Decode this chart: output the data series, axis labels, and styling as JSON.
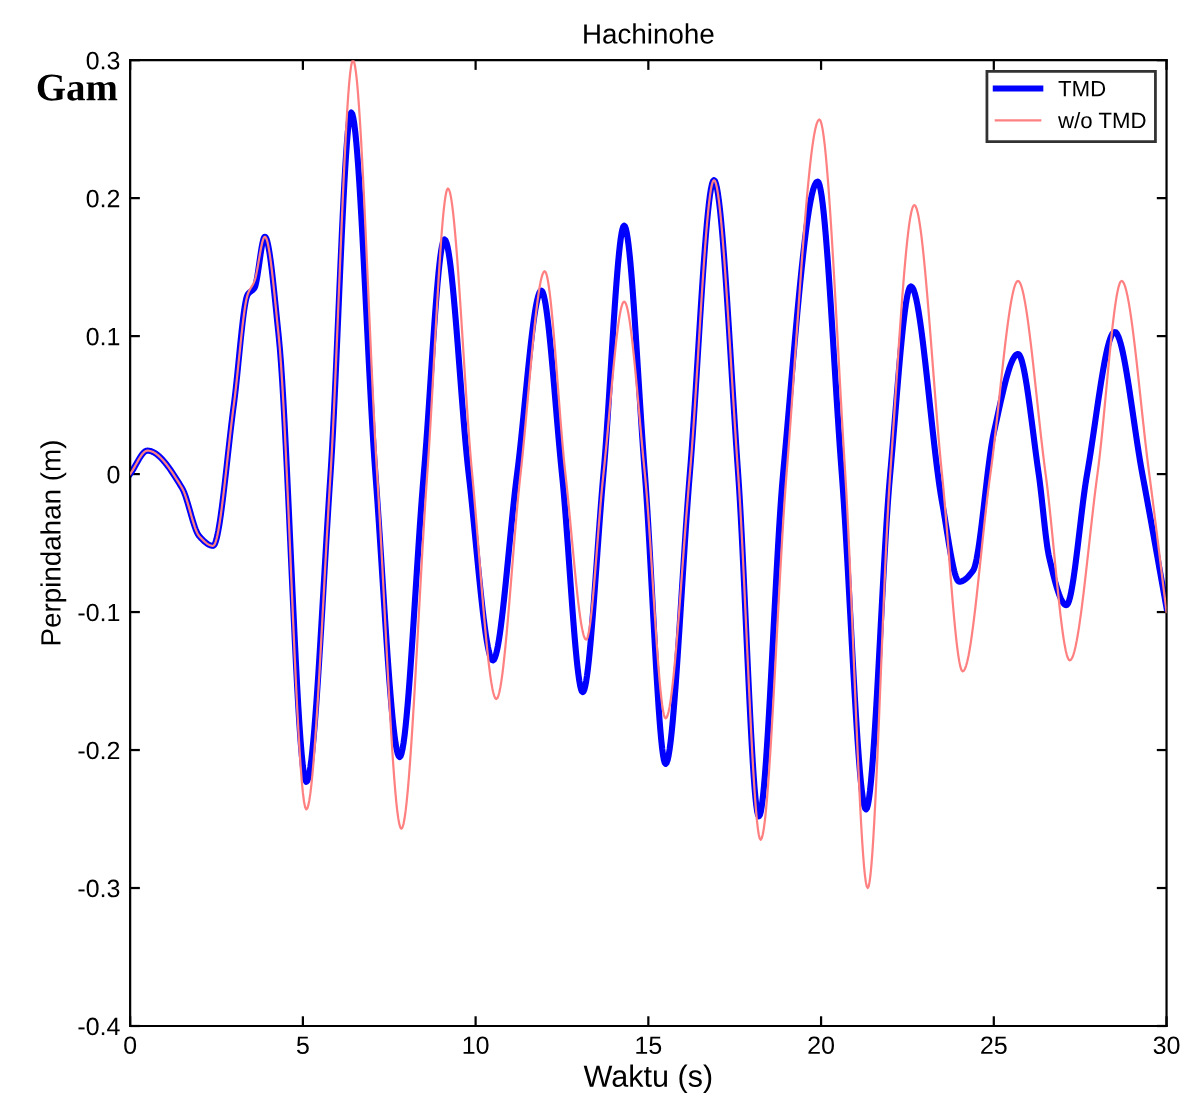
{
  "chart_data": {
    "type": "line",
    "title": "Hachinohe",
    "xlabel": "Waktu (s)",
    "ylabel": "Perpindahan (m)",
    "annotations": [
      "Gam"
    ],
    "xlim": [
      0,
      30
    ],
    "xticks": [
      0,
      5,
      10,
      15,
      20,
      25,
      30
    ],
    "ylim": [
      -0.4,
      0.3
    ],
    "yticks": [
      -0.4,
      -0.3,
      -0.2,
      -0.1,
      0,
      0.1,
      0.2,
      0.3
    ],
    "grid": false,
    "legend": "top right",
    "marker": "none",
    "line_style": "solid",
    "series": [
      {
        "name": "TMD",
        "color": "#0000ff",
        "x": [
          0,
          0.5,
          1.5,
          2.0,
          2.4,
          3.0,
          3.4,
          3.6,
          3.9,
          4.3,
          5.1,
          5.8,
          6.4,
          7.1,
          7.8,
          8.5,
          9.1,
          9.8,
          10.5,
          11.2,
          11.9,
          12.5,
          13.1,
          13.7,
          14.3,
          14.9,
          15.5,
          16.2,
          16.9,
          17.6,
          18.2,
          18.9,
          19.9,
          20.6,
          21.3,
          22.0,
          22.6,
          23.5,
          24.0,
          24.4,
          25.0,
          25.7,
          26.3,
          26.6,
          27.1,
          27.7,
          28.5,
          29.3,
          30
        ],
        "values": [
          0,
          0.017,
          -0.01,
          -0.045,
          -0.052,
          0.05,
          0.13,
          0.135,
          0.172,
          0.1,
          -0.223,
          0.0,
          0.262,
          0.0,
          -0.205,
          0.0,
          0.17,
          0.0,
          -0.135,
          0.0,
          0.133,
          0.0,
          -0.158,
          0.0,
          0.18,
          0.0,
          -0.21,
          0.0,
          0.213,
          0.0,
          -0.248,
          0.0,
          0.212,
          0.0,
          -0.243,
          0.0,
          0.136,
          -0.02,
          -0.078,
          -0.07,
          0.03,
          0.087,
          0.0,
          -0.06,
          -0.095,
          0.0,
          0.103,
          0.0,
          -0.097
        ]
      },
      {
        "name": "w/o TMD",
        "color": "#ff8080",
        "x": [
          0,
          0.5,
          1.5,
          2.0,
          2.4,
          3.0,
          3.4,
          3.6,
          3.9,
          4.3,
          5.1,
          5.8,
          6.45,
          7.15,
          7.85,
          8.6,
          9.2,
          9.9,
          10.6,
          11.3,
          12.0,
          12.6,
          13.2,
          13.7,
          14.3,
          14.9,
          15.5,
          16.2,
          16.9,
          17.6,
          18.25,
          19.0,
          19.95,
          20.7,
          21.35,
          22.0,
          22.7,
          23.5,
          24.1,
          24.9,
          25.7,
          26.5,
          27.2,
          28.0,
          28.7,
          29.5,
          30
        ],
        "values": [
          0,
          0.017,
          -0.01,
          -0.045,
          -0.052,
          0.05,
          0.13,
          0.14,
          0.172,
          0.1,
          -0.243,
          0.0,
          0.3,
          0.0,
          -0.257,
          0.0,
          0.207,
          0.0,
          -0.163,
          0.0,
          0.147,
          0.0,
          -0.12,
          0.0,
          0.125,
          0.0,
          -0.177,
          0.0,
          0.213,
          0.0,
          -0.265,
          0.0,
          0.257,
          0.0,
          -0.3,
          0.0,
          0.195,
          0.0,
          -0.143,
          0.0,
          0.14,
          0.0,
          -0.135,
          0.0,
          0.14,
          0.0,
          -0.1
        ]
      }
    ]
  }
}
